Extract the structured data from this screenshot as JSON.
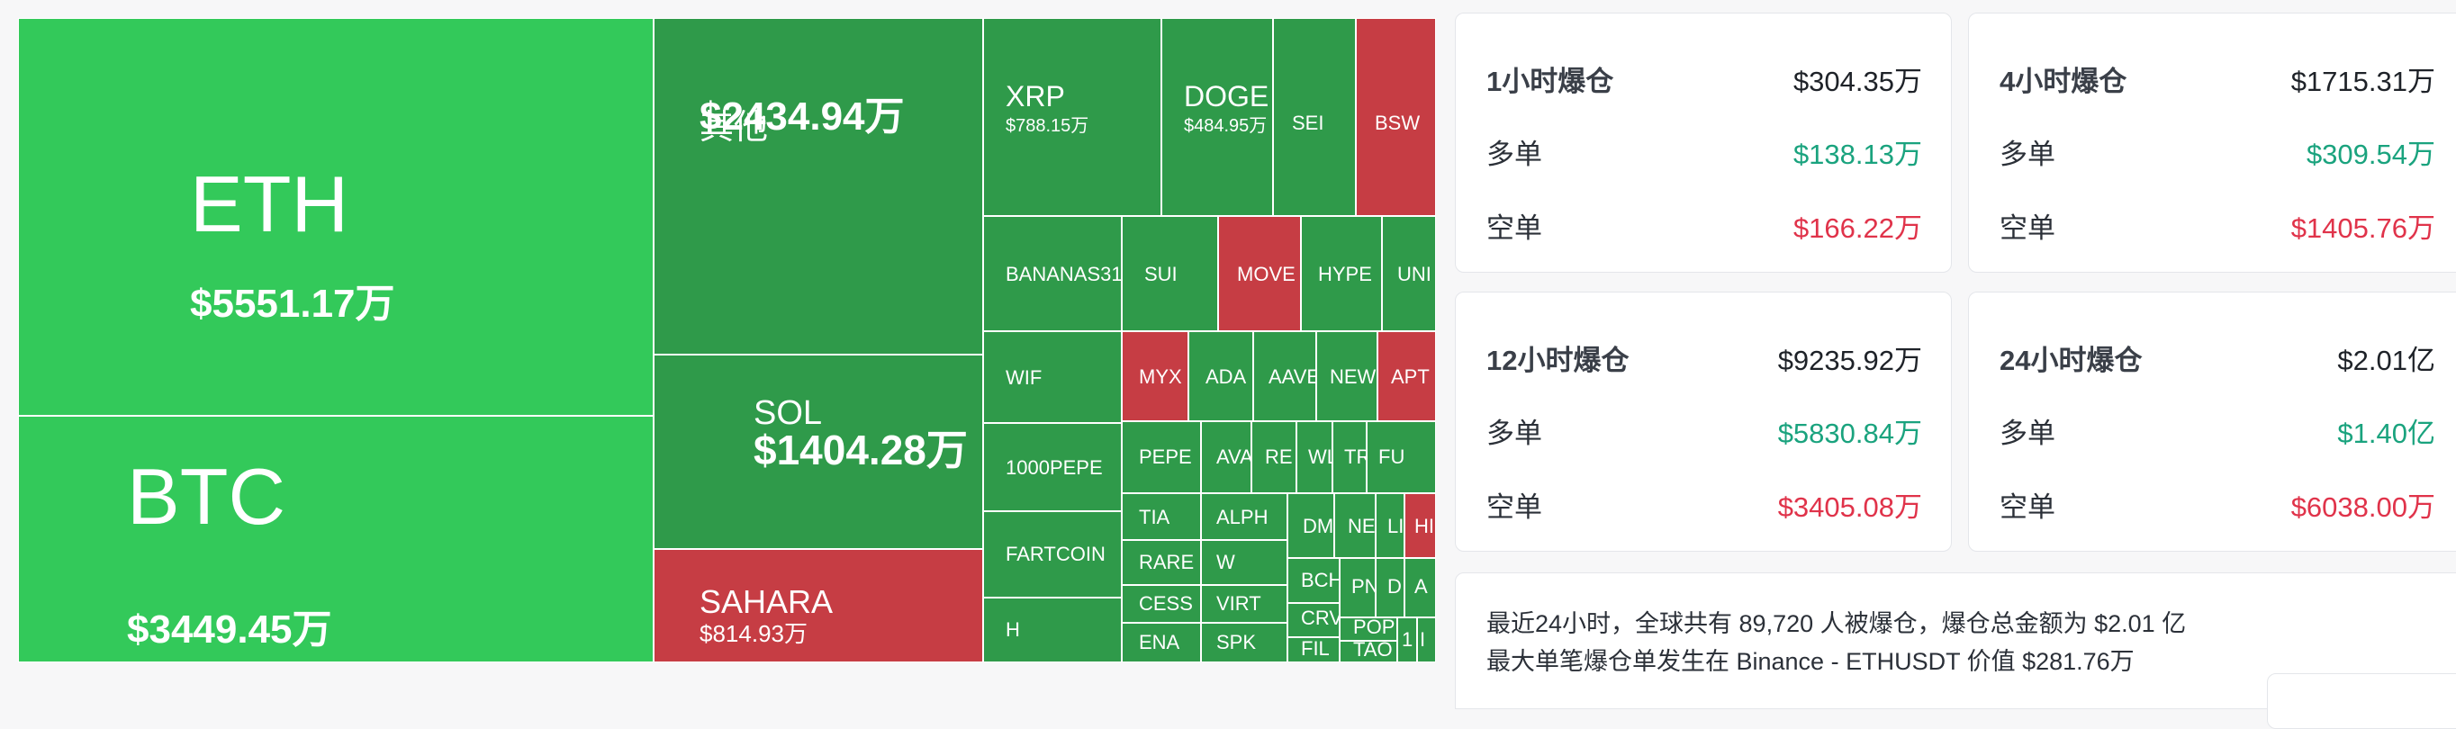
{
  "treemap": {
    "tiles": [
      {
        "symbol": "ETH",
        "amount": "$5551.17万",
        "color": "big"
      },
      {
        "symbol": "BTC",
        "amount": "$3449.45万",
        "color": "big"
      },
      {
        "symbol": "其他",
        "amount": "$2434.94万",
        "color": "up"
      },
      {
        "symbol": "SOL",
        "amount": "$1404.28万",
        "color": "up"
      },
      {
        "symbol": "SAHARA",
        "amount": "$814.93万",
        "color": "down"
      },
      {
        "symbol": "XRP",
        "amount": "$788.15万",
        "color": "up"
      },
      {
        "symbol": "DOGE",
        "amount": "$484.95万",
        "color": "up"
      },
      {
        "symbol": "SEI",
        "amount": "",
        "color": "up"
      },
      {
        "symbol": "BSW",
        "amount": "",
        "color": "down"
      },
      {
        "symbol": "BANANAS31",
        "amount": "",
        "color": "up"
      },
      {
        "symbol": "SUI",
        "amount": "",
        "color": "up"
      },
      {
        "symbol": "MOVE",
        "amount": "",
        "color": "down"
      },
      {
        "symbol": "HYPE",
        "amount": "",
        "color": "up"
      },
      {
        "symbol": "UNI",
        "amount": "",
        "color": "up"
      },
      {
        "symbol": "WIF",
        "amount": "",
        "color": "up"
      },
      {
        "symbol": "MYX",
        "amount": "",
        "color": "down"
      },
      {
        "symbol": "ADA",
        "amount": "",
        "color": "up"
      },
      {
        "symbol": "AAVE",
        "amount": "",
        "color": "up"
      },
      {
        "symbol": "NEW",
        "amount": "",
        "color": "up"
      },
      {
        "symbol": "APT",
        "amount": "",
        "color": "down"
      },
      {
        "symbol": "1000PEPE",
        "amount": "",
        "color": "up"
      },
      {
        "symbol": "PEPE",
        "amount": "",
        "color": "up"
      },
      {
        "symbol": "AVAX",
        "amount": "",
        "color": "up"
      },
      {
        "symbol": "RE",
        "amount": "",
        "color": "up"
      },
      {
        "symbol": "WL",
        "amount": "",
        "color": "up"
      },
      {
        "symbol": "TR",
        "amount": "",
        "color": "up"
      },
      {
        "symbol": "FU",
        "amount": "",
        "color": "up"
      },
      {
        "symbol": "TIA",
        "amount": "",
        "color": "up"
      },
      {
        "symbol": "ALPH",
        "amount": "",
        "color": "up"
      },
      {
        "symbol": "DM",
        "amount": "",
        "color": "up"
      },
      {
        "symbol": "NE",
        "amount": "",
        "color": "up"
      },
      {
        "symbol": "LI",
        "amount": "",
        "color": "up"
      },
      {
        "symbol": "HI",
        "amount": "",
        "color": "down"
      },
      {
        "symbol": "FARTCOIN",
        "amount": "",
        "color": "up"
      },
      {
        "symbol": "RARE",
        "amount": "",
        "color": "up"
      },
      {
        "symbol": "W",
        "amount": "",
        "color": "up"
      },
      {
        "symbol": "BCH",
        "amount": "",
        "color": "up"
      },
      {
        "symbol": "PN",
        "amount": "",
        "color": "up"
      },
      {
        "symbol": "D",
        "amount": "",
        "color": "up"
      },
      {
        "symbol": "A",
        "amount": "",
        "color": "up"
      },
      {
        "symbol": "CESS",
        "amount": "",
        "color": "up"
      },
      {
        "symbol": "VIRT",
        "amount": "",
        "color": "up"
      },
      {
        "symbol": "CRV",
        "amount": "",
        "color": "up"
      },
      {
        "symbol": "POP",
        "amount": "",
        "color": "up"
      },
      {
        "symbol": "H",
        "amount": "",
        "color": "up"
      },
      {
        "symbol": "ENA",
        "amount": "",
        "color": "up"
      },
      {
        "symbol": "SPK",
        "amount": "",
        "color": "up"
      },
      {
        "symbol": "FIL",
        "amount": "",
        "color": "up"
      },
      {
        "symbol": "TAO",
        "amount": "",
        "color": "up"
      },
      {
        "symbol": "1",
        "amount": "",
        "color": "up"
      },
      {
        "symbol": "I",
        "amount": "",
        "color": "up"
      }
    ]
  },
  "cards": [
    {
      "title": "1小时爆仓",
      "total": "$304.35万",
      "long_label": "多单",
      "long_value": "$138.13万",
      "short_label": "空单",
      "short_value": "$166.22万"
    },
    {
      "title": "4小时爆仓",
      "total": "$1715.31万",
      "long_label": "多单",
      "long_value": "$309.54万",
      "short_label": "空单",
      "short_value": "$1405.76万"
    },
    {
      "title": "12小时爆仓",
      "total": "$9235.92万",
      "long_label": "多单",
      "long_value": "$5830.84万",
      "short_label": "空单",
      "short_value": "$3405.08万"
    },
    {
      "title": "24小时爆仓",
      "total": "$2.01亿",
      "long_label": "多单",
      "long_value": "$1.40亿",
      "short_label": "空单",
      "short_value": "$6038.00万"
    }
  ],
  "summary": {
    "line1": "最近24小时，全球共有 89,720 人被爆仓，爆仓总金额为 $2.01 亿",
    "line2": "最大单笔爆仓单发生在 Binance - ETHUSDT 价值 $281.76万"
  },
  "colors": {
    "up": "#2f9a4a",
    "big": "#33c95a",
    "down": "#c63d44",
    "long": "#1aa37e",
    "short": "#e0334a"
  }
}
